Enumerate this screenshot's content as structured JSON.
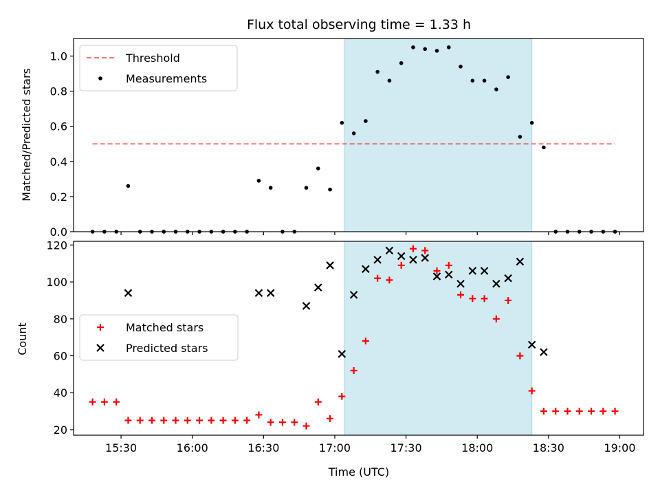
{
  "chart_data": [
    {
      "type": "scatter",
      "title": "Flux total observing time = 1.33 h",
      "ylabel": "Matched/Predicted stars",
      "xlabel": "",
      "ylim": [
        0,
        1.1
      ],
      "yticks": [
        "0.0",
        "0.2",
        "0.4",
        "0.6",
        "0.8",
        "1.0"
      ],
      "xtick_labels_shown": false,
      "legend": {
        "placement": "upper-left",
        "entries": [
          "Threshold",
          "Measurements"
        ]
      },
      "highlight_span": {
        "start": "17:04",
        "end": "18:23",
        "color": "#add8e6"
      },
      "threshold": {
        "name": "Threshold",
        "value": 0.5,
        "x_start": "15:18",
        "x_end": "18:58",
        "color": "#ff0000"
      },
      "series": [
        {
          "name": "Measurements",
          "color": "#000000",
          "marker": "dot",
          "points": [
            {
              "t": "15:18",
              "v": 0.0
            },
            {
              "t": "15:23",
              "v": 0.0
            },
            {
              "t": "15:28",
              "v": 0.0
            },
            {
              "t": "15:33",
              "v": 0.26
            },
            {
              "t": "15:38",
              "v": 0.0
            },
            {
              "t": "15:43",
              "v": 0.0
            },
            {
              "t": "15:48",
              "v": 0.0
            },
            {
              "t": "15:53",
              "v": 0.0
            },
            {
              "t": "15:58",
              "v": 0.0
            },
            {
              "t": "16:03",
              "v": 0.0
            },
            {
              "t": "16:08",
              "v": 0.0
            },
            {
              "t": "16:13",
              "v": 0.0
            },
            {
              "t": "16:18",
              "v": 0.0
            },
            {
              "t": "16:23",
              "v": 0.0
            },
            {
              "t": "16:28",
              "v": 0.29
            },
            {
              "t": "16:33",
              "v": 0.25
            },
            {
              "t": "16:38",
              "v": 0.0
            },
            {
              "t": "16:43",
              "v": 0.0
            },
            {
              "t": "16:48",
              "v": 0.25
            },
            {
              "t": "16:53",
              "v": 0.36
            },
            {
              "t": "16:58",
              "v": 0.24
            },
            {
              "t": "17:03",
              "v": 0.62
            },
            {
              "t": "17:08",
              "v": 0.56
            },
            {
              "t": "17:13",
              "v": 0.63
            },
            {
              "t": "17:18",
              "v": 0.91
            },
            {
              "t": "17:23",
              "v": 0.86
            },
            {
              "t": "17:28",
              "v": 0.96
            },
            {
              "t": "17:33",
              "v": 1.05
            },
            {
              "t": "17:38",
              "v": 1.04
            },
            {
              "t": "17:43",
              "v": 1.03
            },
            {
              "t": "17:48",
              "v": 1.05
            },
            {
              "t": "17:53",
              "v": 0.94
            },
            {
              "t": "17:58",
              "v": 0.86
            },
            {
              "t": "18:03",
              "v": 0.86
            },
            {
              "t": "18:08",
              "v": 0.81
            },
            {
              "t": "18:13",
              "v": 0.88
            },
            {
              "t": "18:18",
              "v": 0.54
            },
            {
              "t": "18:23",
              "v": 0.62
            },
            {
              "t": "18:28",
              "v": 0.48
            },
            {
              "t": "18:33",
              "v": 0.0
            },
            {
              "t": "18:38",
              "v": 0.0
            },
            {
              "t": "18:43",
              "v": 0.0
            },
            {
              "t": "18:48",
              "v": 0.0
            },
            {
              "t": "18:53",
              "v": 0.0
            },
            {
              "t": "18:58",
              "v": 0.0
            }
          ]
        }
      ]
    },
    {
      "type": "scatter",
      "title": "",
      "ylabel": "Count",
      "xlabel": "Time (UTC)",
      "ylim": [
        17,
        122
      ],
      "yticks": [
        "20",
        "40",
        "60",
        "80",
        "100",
        "120"
      ],
      "xticks": [
        "15:30",
        "16:00",
        "16:30",
        "17:00",
        "17:30",
        "18:00",
        "18:30",
        "19:00"
      ],
      "xlim": [
        "15:10",
        "19:10"
      ],
      "legend": {
        "placement": "center-left",
        "entries": [
          "Matched stars",
          "Predicted stars"
        ]
      },
      "highlight_span": {
        "start": "17:04",
        "end": "18:23",
        "color": "#add8e6"
      },
      "series": [
        {
          "name": "Matched stars",
          "color": "#ff0000",
          "marker": "plus",
          "points": [
            {
              "t": "15:18",
              "v": 35
            },
            {
              "t": "15:23",
              "v": 35
            },
            {
              "t": "15:28",
              "v": 35
            },
            {
              "t": "15:33",
              "v": 25
            },
            {
              "t": "15:38",
              "v": 25
            },
            {
              "t": "15:43",
              "v": 25
            },
            {
              "t": "15:48",
              "v": 25
            },
            {
              "t": "15:53",
              "v": 25
            },
            {
              "t": "15:58",
              "v": 25
            },
            {
              "t": "16:03",
              "v": 25
            },
            {
              "t": "16:08",
              "v": 25
            },
            {
              "t": "16:13",
              "v": 25
            },
            {
              "t": "16:18",
              "v": 25
            },
            {
              "t": "16:23",
              "v": 25
            },
            {
              "t": "16:28",
              "v": 28
            },
            {
              "t": "16:33",
              "v": 24
            },
            {
              "t": "16:38",
              "v": 24
            },
            {
              "t": "16:43",
              "v": 24
            },
            {
              "t": "16:48",
              "v": 22
            },
            {
              "t": "16:53",
              "v": 35
            },
            {
              "t": "16:58",
              "v": 26
            },
            {
              "t": "17:03",
              "v": 38
            },
            {
              "t": "17:08",
              "v": 52
            },
            {
              "t": "17:13",
              "v": 68
            },
            {
              "t": "17:18",
              "v": 102
            },
            {
              "t": "17:23",
              "v": 101
            },
            {
              "t": "17:28",
              "v": 109
            },
            {
              "t": "17:33",
              "v": 118
            },
            {
              "t": "17:38",
              "v": 117
            },
            {
              "t": "17:43",
              "v": 106
            },
            {
              "t": "17:48",
              "v": 109
            },
            {
              "t": "17:53",
              "v": 93
            },
            {
              "t": "17:58",
              "v": 91
            },
            {
              "t": "18:03",
              "v": 91
            },
            {
              "t": "18:08",
              "v": 80
            },
            {
              "t": "18:13",
              "v": 90
            },
            {
              "t": "18:18",
              "v": 60
            },
            {
              "t": "18:23",
              "v": 41
            },
            {
              "t": "18:28",
              "v": 30
            },
            {
              "t": "18:33",
              "v": 30
            },
            {
              "t": "18:38",
              "v": 30
            },
            {
              "t": "18:43",
              "v": 30
            },
            {
              "t": "18:48",
              "v": 30
            },
            {
              "t": "18:53",
              "v": 30
            },
            {
              "t": "18:58",
              "v": 30
            }
          ]
        },
        {
          "name": "Predicted stars",
          "color": "#000000",
          "marker": "x",
          "points": [
            {
              "t": "15:33",
              "v": 94
            },
            {
              "t": "16:28",
              "v": 94
            },
            {
              "t": "16:33",
              "v": 94
            },
            {
              "t": "16:48",
              "v": 87
            },
            {
              "t": "16:53",
              "v": 97
            },
            {
              "t": "16:58",
              "v": 109
            },
            {
              "t": "17:03",
              "v": 61
            },
            {
              "t": "17:08",
              "v": 93
            },
            {
              "t": "17:13",
              "v": 107
            },
            {
              "t": "17:18",
              "v": 112
            },
            {
              "t": "17:23",
              "v": 117
            },
            {
              "t": "17:28",
              "v": 114
            },
            {
              "t": "17:33",
              "v": 112
            },
            {
              "t": "17:38",
              "v": 113
            },
            {
              "t": "17:43",
              "v": 103
            },
            {
              "t": "17:48",
              "v": 104
            },
            {
              "t": "17:53",
              "v": 99
            },
            {
              "t": "17:58",
              "v": 106
            },
            {
              "t": "18:03",
              "v": 106
            },
            {
              "t": "18:08",
              "v": 99
            },
            {
              "t": "18:13",
              "v": 102
            },
            {
              "t": "18:18",
              "v": 111
            },
            {
              "t": "18:23",
              "v": 66
            },
            {
              "t": "18:28",
              "v": 62
            }
          ]
        }
      ]
    }
  ]
}
